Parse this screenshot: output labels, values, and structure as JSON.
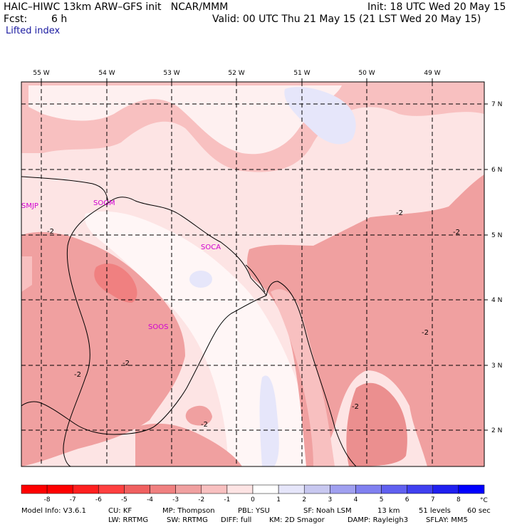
{
  "header": {
    "title": "HAIC–HIWC 13km ARW–GFS init   NCAR/MMM",
    "init": "Init: 18 UTC Wed 20 May 15",
    "fcst_label": "Fcst:",
    "fcst_value": "6 h",
    "valid": "Valid: 00 UTC Thu 21 May 15 (21 LST Wed 20 May 15)",
    "field": "Lifted index"
  },
  "map": {
    "lon_labels": [
      "55 W",
      "54 W",
      "53 W",
      "52 W",
      "51 W",
      "50 W",
      "49 W"
    ],
    "lat_labels": [
      "7 N",
      "6 N",
      "5 N",
      "4 N",
      "3 N",
      "2 N"
    ],
    "stations": [
      "SMJP",
      "SOGM",
      "SOCA",
      "SOOS"
    ],
    "contour_label": "-2"
  },
  "colorbar": {
    "ticks": [
      "-8",
      "-7",
      "-6",
      "-5",
      "-4",
      "-3",
      "-2",
      "-1",
      "0",
      "1",
      "2",
      "3",
      "4",
      "5",
      "6",
      "7",
      "8"
    ],
    "unit": "°C",
    "colors": [
      "#ff0000",
      "#ff2020",
      "#ff4040",
      "#f06060",
      "#f08080",
      "#f0a0a0",
      "#f8c0c0",
      "#fde4e4",
      "#ffffff",
      "#e6e6fa",
      "#c8c8f0",
      "#a0a0f0",
      "#8080f0",
      "#6060f0",
      "#4040f0",
      "#2020f0",
      "#0000ff"
    ]
  },
  "footer": {
    "line1": [
      "Model Info: V3.6.1",
      "CU: KF",
      "MP: Thompson",
      "PBL: YSU",
      "SF: Noah LSM",
      "13 km",
      "51 levels",
      "60 sec"
    ],
    "line2": [
      "LW: RRTMG",
      "SW: RRTMG",
      "DIFF: full",
      "KM: 2D Smagor",
      "DAMP: Rayleigh3",
      "SFLAY: MM5"
    ]
  }
}
